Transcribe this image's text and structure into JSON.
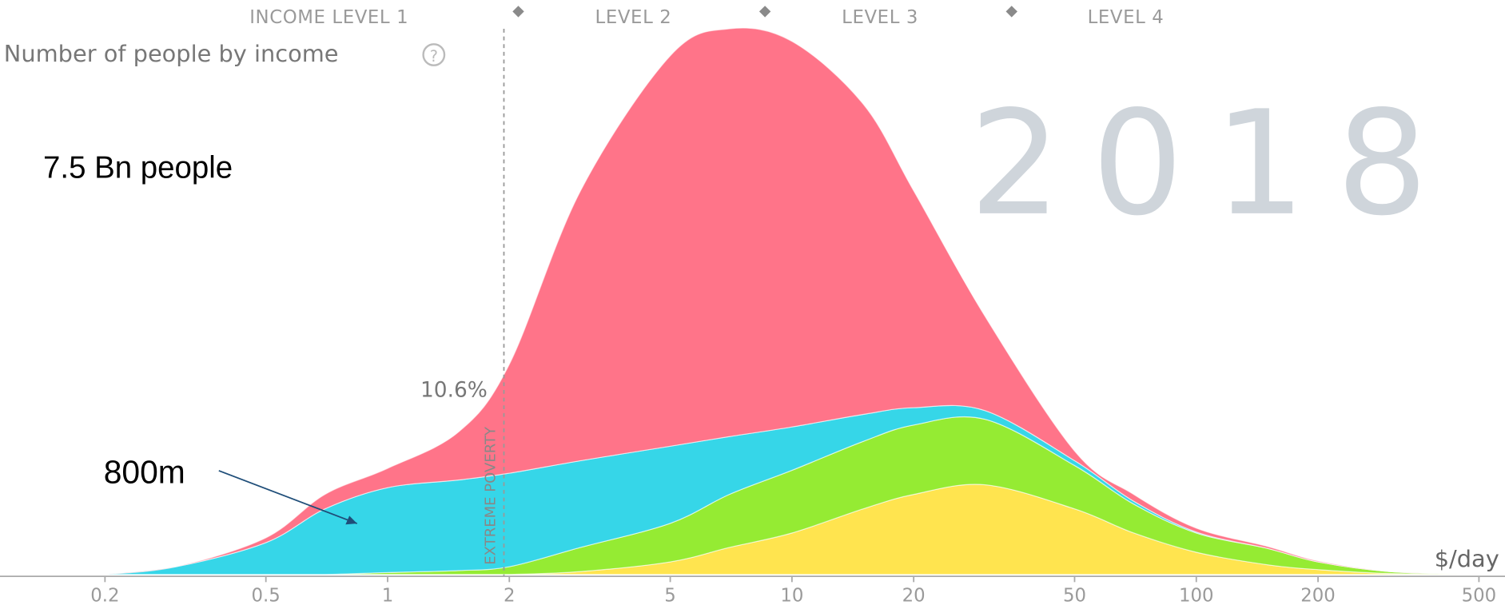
{
  "chart_data": {
    "type": "area",
    "stacked": true,
    "title": "Number of people by income",
    "year": "2018",
    "levels": [
      "INCOME LEVEL 1",
      "LEVEL 2",
      "LEVEL 3",
      "LEVEL 4"
    ],
    "annotations": [
      "7.5 Bn people",
      "800m",
      "10.6%",
      "EXTREME POVERTY"
    ],
    "x_label": "$/day",
    "xscale": "log",
    "xlim": [
      0.11,
      580
    ],
    "xticks": [
      0.2,
      0.5,
      1,
      2,
      5,
      10,
      20,
      50,
      100,
      200,
      500
    ],
    "x": [
      0.2,
      0.3,
      0.5,
      0.7,
      1,
      1.5,
      2,
      3,
      5,
      7,
      10,
      15,
      20,
      30,
      50,
      70,
      100,
      150,
      200,
      300,
      500
    ],
    "series": [
      {
        "color": "#ffe44f",
        "values": [
          0,
          0,
          0,
          0,
          0,
          0,
          0,
          3,
          13,
          28,
          43,
          68,
          83,
          93,
          68,
          43,
          23,
          10,
          5,
          1,
          0
        ]
      },
      {
        "color": "#95eb33",
        "values": [
          0,
          0,
          0,
          0,
          2,
          4,
          8,
          25,
          40,
          55,
          65,
          70,
          72,
          68,
          45,
          30,
          20,
          17,
          8,
          2,
          0
        ]
      },
      {
        "color": "#36d6e8",
        "values": [
          0,
          8,
          33,
          68,
          88,
          94,
          97,
          90,
          80,
          60,
          45,
          28,
          18,
          9,
          5,
          3,
          1,
          0,
          0,
          0,
          0
        ]
      },
      {
        "color": "#ff7489",
        "values": [
          0,
          0,
          5,
          15,
          20,
          50,
          113,
          280,
          405,
          423,
          400,
          322,
          225,
          98,
          10,
          7,
          4,
          2,
          1,
          0,
          0
        ]
      }
    ]
  }
}
